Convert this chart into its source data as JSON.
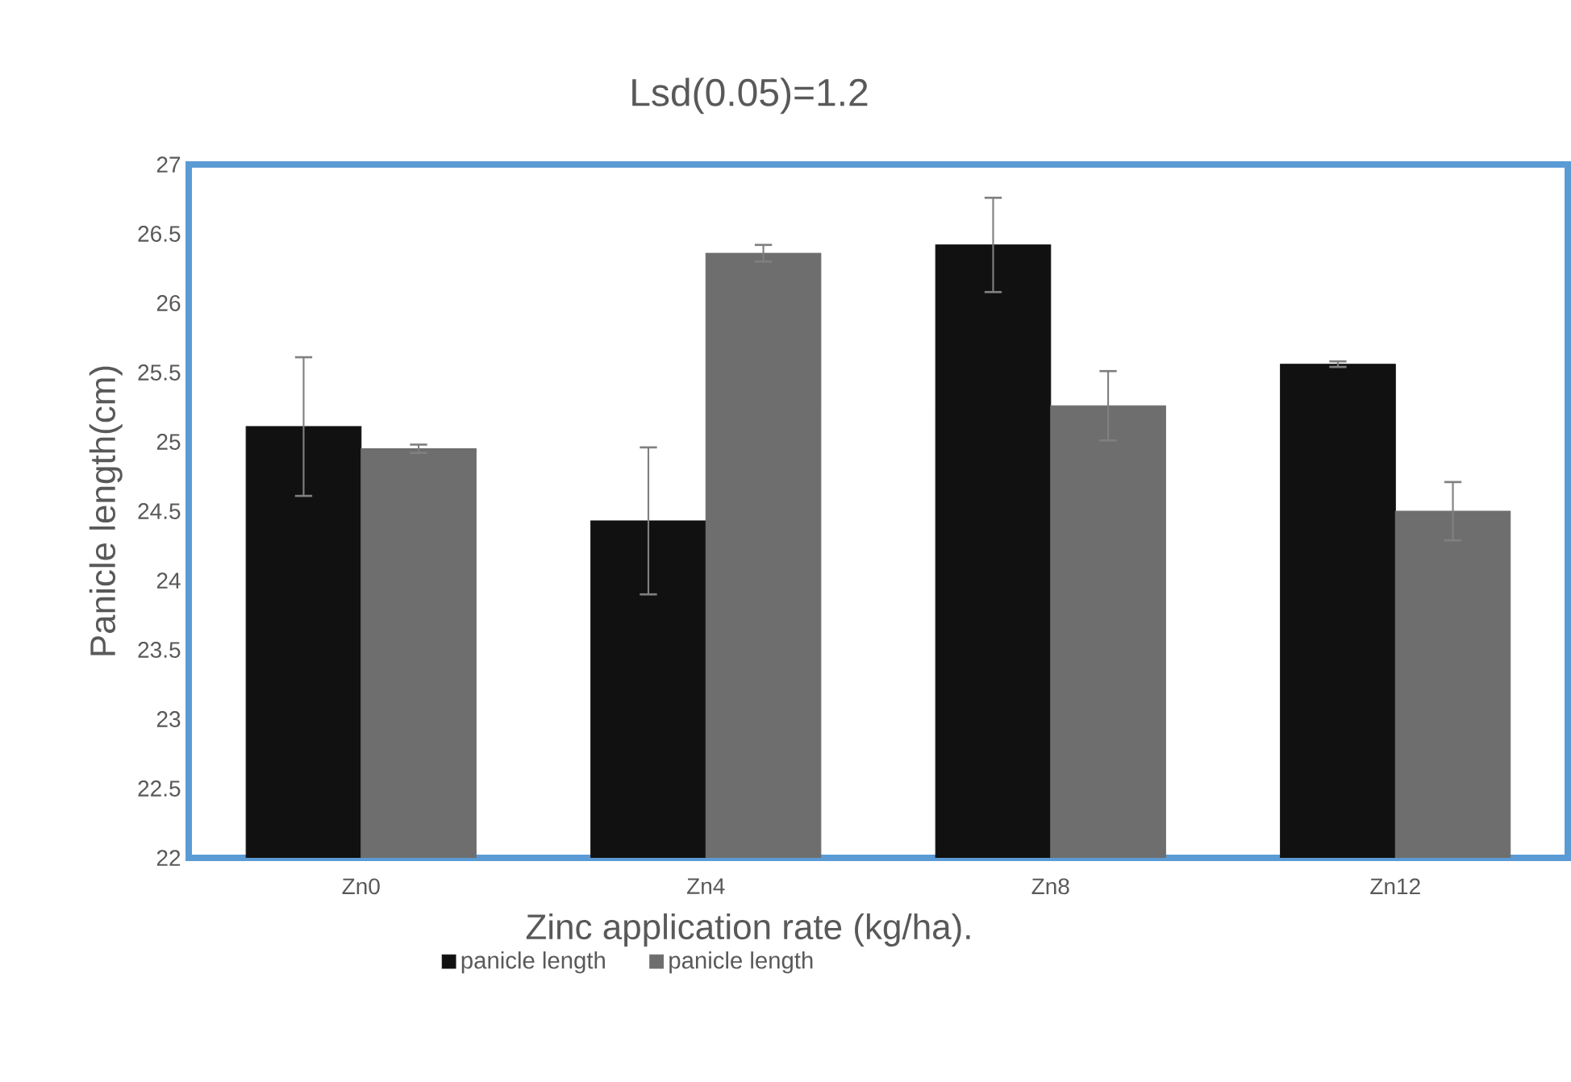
{
  "chart_data": {
    "type": "bar",
    "title": "Lsd(0.05)=1.2",
    "xlabel": "Zinc application rate (kg/ha).",
    "ylabel": "Panicle length(cm)",
    "categories": [
      "Zn0",
      "Zn4",
      "Zn8",
      "Zn12"
    ],
    "series": [
      {
        "name": "panicle length",
        "color": "#111111",
        "values": [
          25.11,
          24.43,
          26.42,
          25.56
        ],
        "errors": [
          0.5,
          0.53,
          0.34,
          0.02
        ]
      },
      {
        "name": "panicle length",
        "color": "#6e6e6e",
        "values": [
          24.95,
          26.36,
          25.26,
          24.5
        ],
        "errors": [
          0.03,
          0.06,
          0.25,
          0.21
        ]
      }
    ],
    "ylim": [
      22,
      27
    ],
    "yticks": [
      22,
      22.5,
      23,
      23.5,
      24,
      24.5,
      25,
      25.5,
      26,
      26.5,
      27
    ],
    "grid": false,
    "legend": "bottom"
  }
}
